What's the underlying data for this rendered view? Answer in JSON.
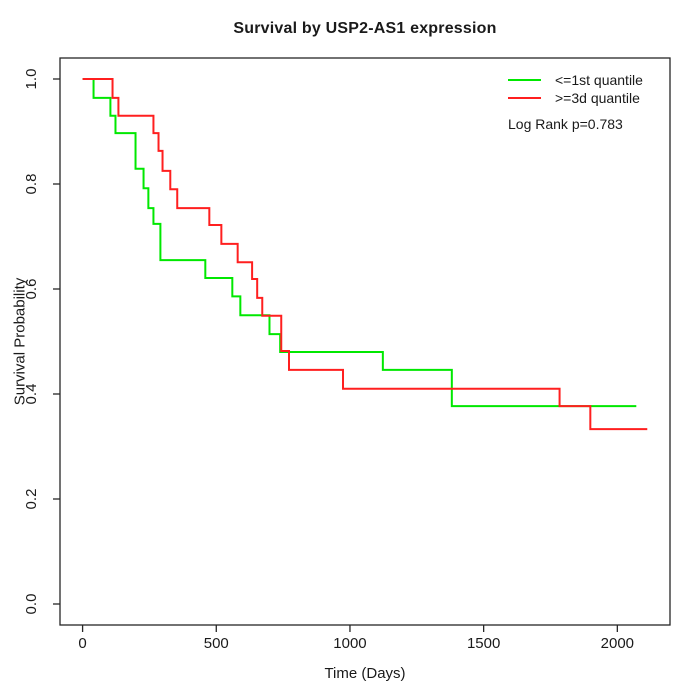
{
  "chart_data": {
    "type": "line",
    "subtype": "kaplan-meier-step-curves",
    "title": "Survival by USP2-AS1 expression",
    "xlabel": "Time (Days)",
    "ylabel": "Survival Probability",
    "xlim": [
      0,
      2112
    ],
    "ylim": [
      0.0,
      1.0
    ],
    "xticks": [
      0,
      500,
      1000,
      1500,
      2000
    ],
    "yticks": [
      0.0,
      0.2,
      0.4,
      0.6,
      0.8,
      1.0
    ],
    "grid": false,
    "legend_position": "top-right",
    "annotation": "Log Rank p=0.783",
    "axis_color": "#262626",
    "series": [
      {
        "name": "<=1st quantile",
        "color": "#00e800",
        "end_time": 2071,
        "points": [
          [
            0,
            1.0
          ],
          [
            41,
            0.964
          ],
          [
            104,
            0.93
          ],
          [
            123,
            0.897
          ],
          [
            198,
            0.829
          ],
          [
            228,
            0.792
          ],
          [
            246,
            0.754
          ],
          [
            265,
            0.724
          ],
          [
            291,
            0.655
          ],
          [
            459,
            0.621
          ],
          [
            560,
            0.586
          ],
          [
            590,
            0.55
          ],
          [
            699,
            0.514
          ],
          [
            739,
            0.48
          ],
          [
            1123,
            0.446
          ],
          [
            1381,
            0.377
          ]
        ]
      },
      {
        "name": ">=3d quantile",
        "color": "#ff1f1f",
        "end_time": 2112,
        "points": [
          [
            0,
            1.0
          ],
          [
            112,
            0.964
          ],
          [
            134,
            0.93
          ],
          [
            265,
            0.897
          ],
          [
            284,
            0.863
          ],
          [
            299,
            0.825
          ],
          [
            328,
            0.79
          ],
          [
            354,
            0.754
          ],
          [
            474,
            0.722
          ],
          [
            519,
            0.686
          ],
          [
            580,
            0.651
          ],
          [
            634,
            0.619
          ],
          [
            653,
            0.583
          ],
          [
            672,
            0.549
          ],
          [
            743,
            0.482
          ],
          [
            772,
            0.446
          ],
          [
            974,
            0.41
          ],
          [
            1784,
            0.377
          ],
          [
            1899,
            0.333
          ]
        ]
      }
    ]
  }
}
